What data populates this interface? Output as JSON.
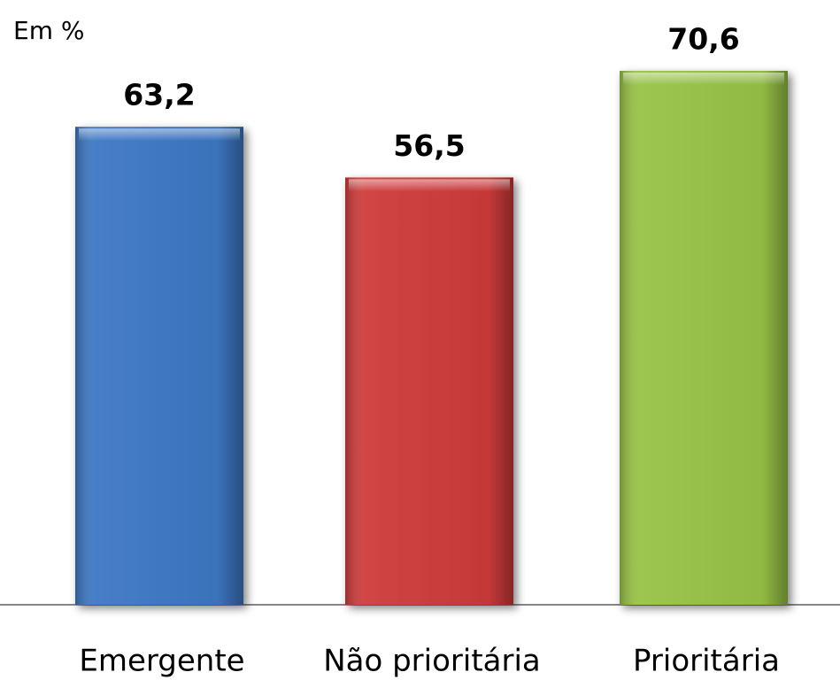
{
  "chart_data": {
    "type": "bar",
    "y_label": "Em %",
    "categories": [
      "Emergente",
      "Não prioritária",
      "Prioritária"
    ],
    "values": [
      63.2,
      56.5,
      70.6
    ],
    "value_labels": [
      "63,2",
      "56,5",
      "70,6"
    ],
    "colors": [
      "#3d78c4",
      "#cf3b3b",
      "#97c346"
    ]
  }
}
